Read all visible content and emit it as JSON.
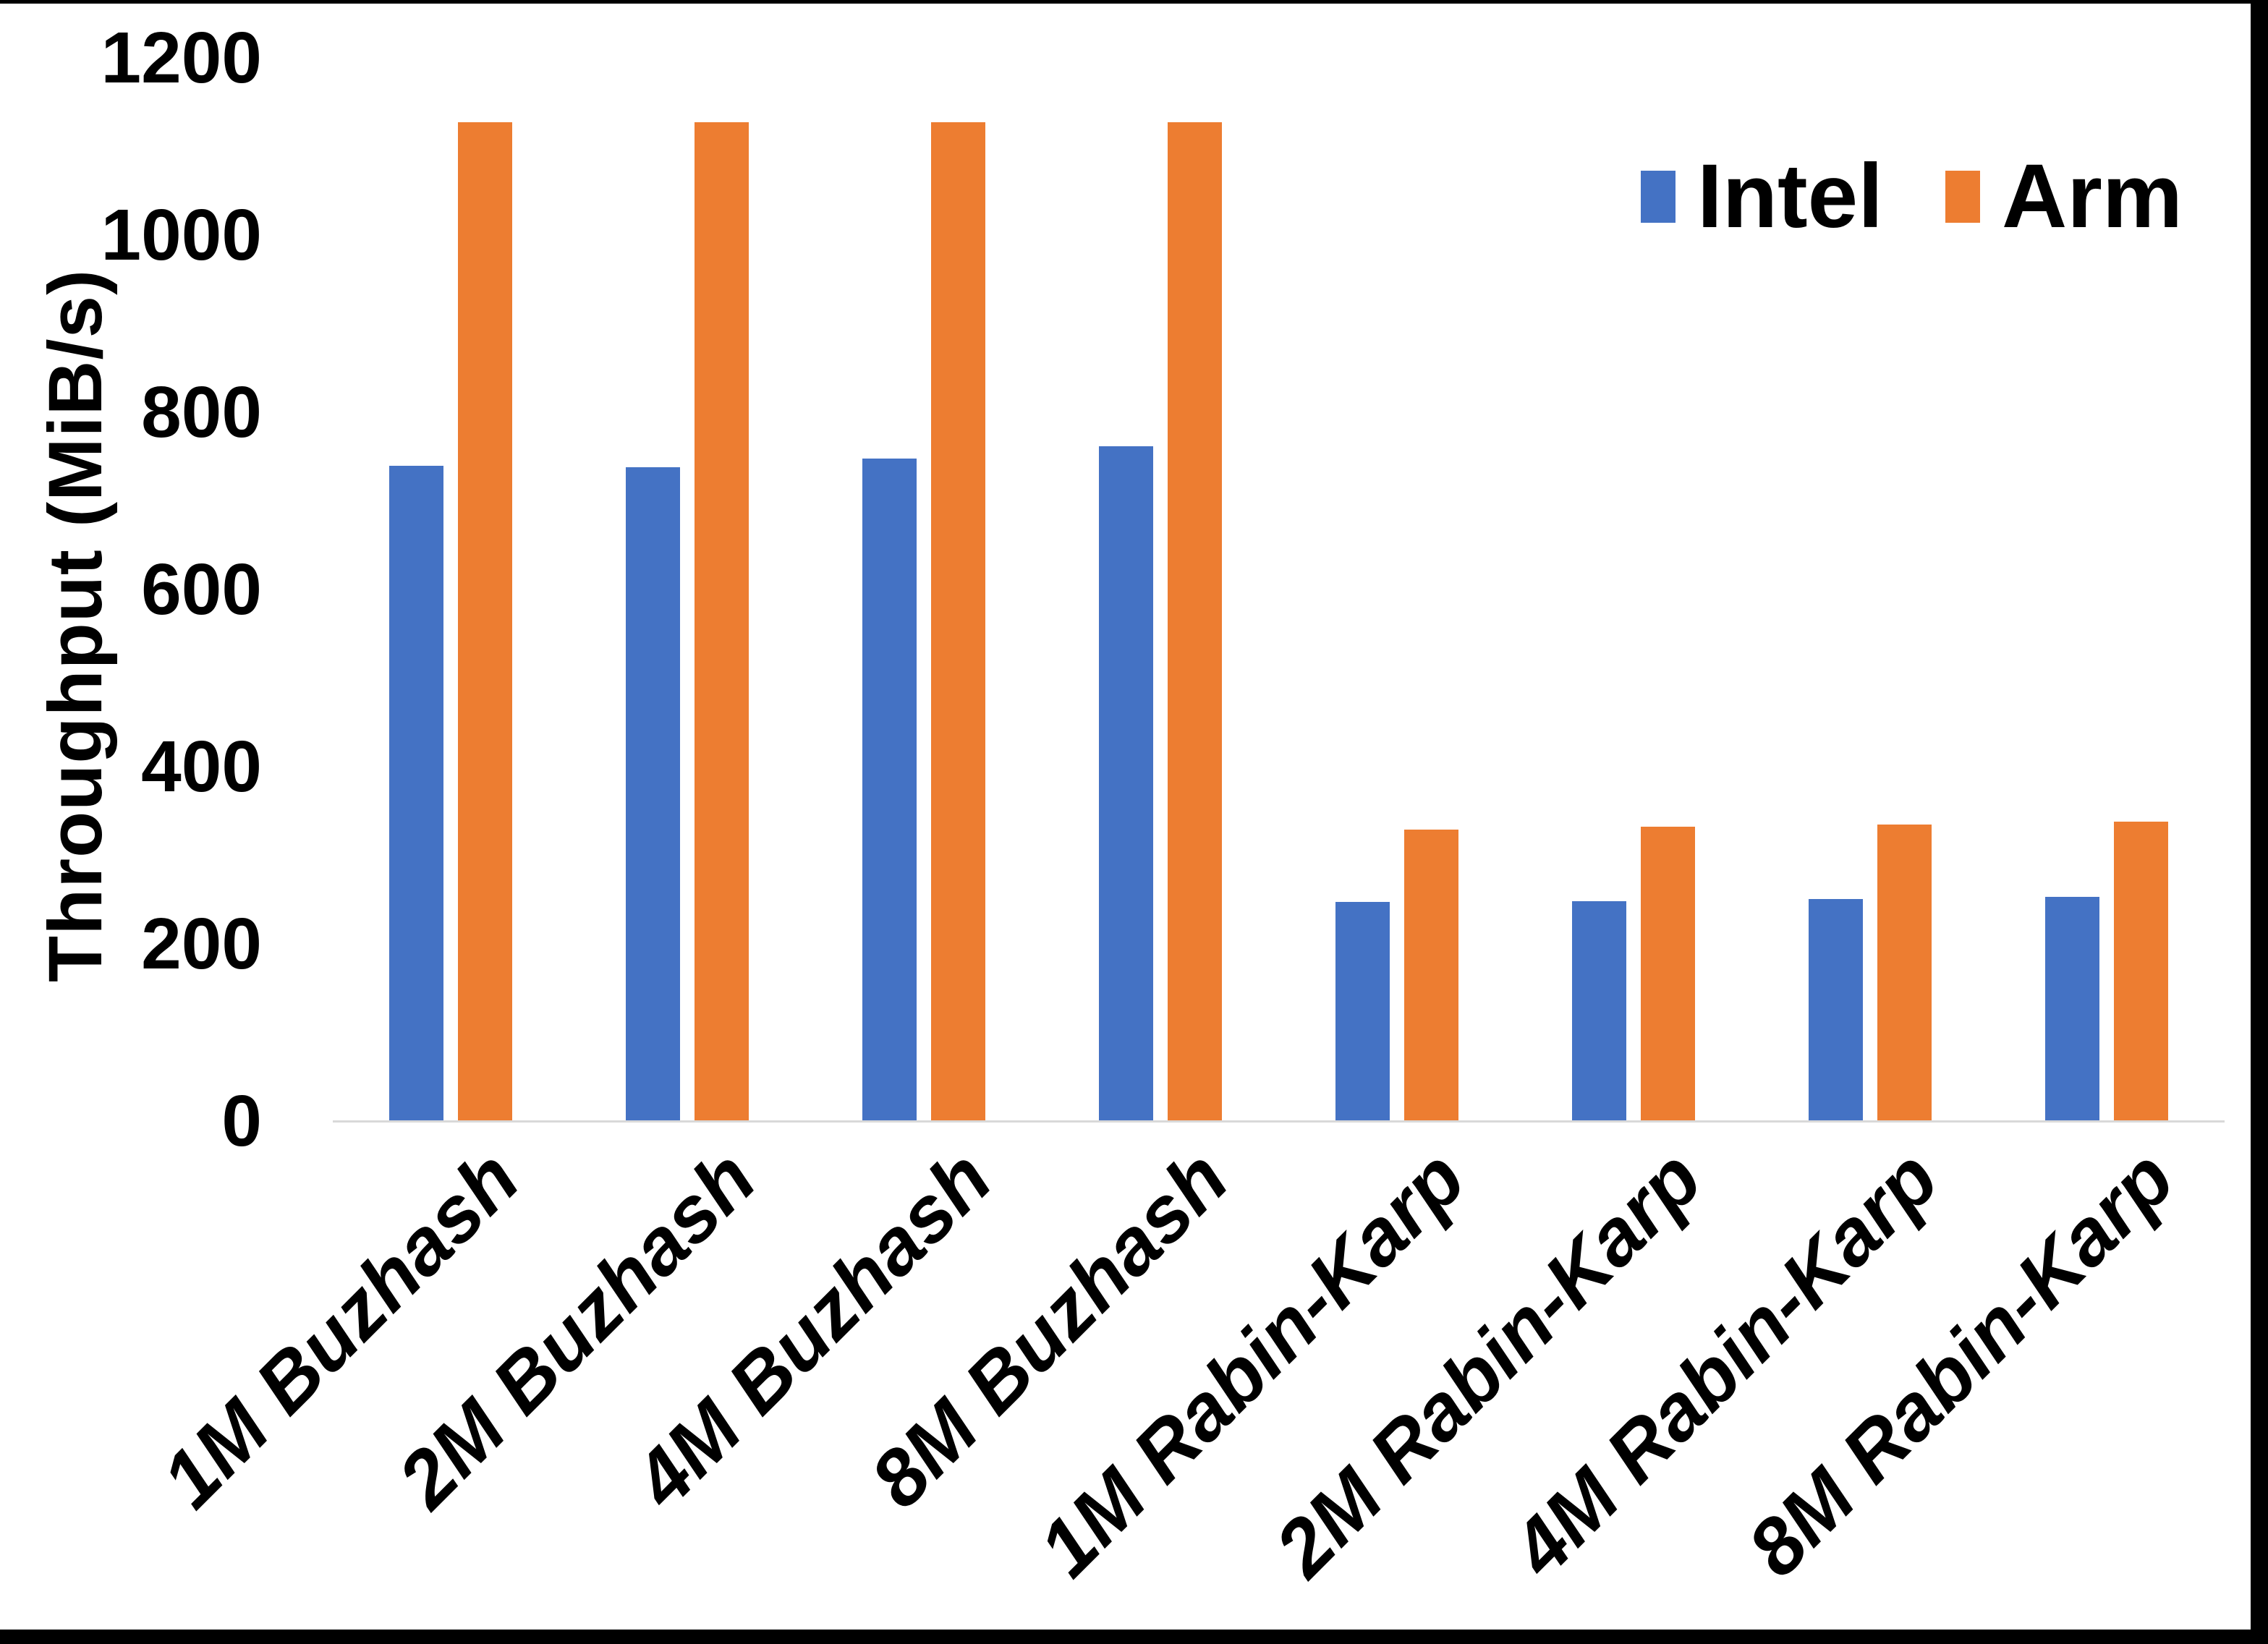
{
  "chart_data": {
    "type": "bar",
    "title": "",
    "xlabel": "",
    "ylabel": "Throughput (MiB/s)",
    "ylim": [
      0,
      1200
    ],
    "ytick_step": 200,
    "yticks": [
      1200,
      1000,
      800,
      600,
      400,
      200,
      0
    ],
    "grid": false,
    "legend_position": "top-right",
    "axis_line_color": "#D9D9D9",
    "background": "#FFFFFF",
    "border_color": "#000000",
    "categories": [
      "1M Buzhash",
      "2M Buzhash",
      "4M Buzhash",
      "8M Buzhash",
      "1M Rabin-Karp",
      "2M Rabin-Karp",
      "4M Rabin-Karp",
      "8M Rabin-Karp"
    ],
    "series": [
      {
        "name": "Intel",
        "color": "#4472C4",
        "values": [
          740,
          738,
          748,
          762,
          247,
          248,
          251,
          253
        ]
      },
      {
        "name": "Arm",
        "color": "#ED7D31",
        "values": [
          1127,
          1127,
          1127,
          1127,
          329,
          332,
          335,
          338
        ]
      }
    ]
  }
}
